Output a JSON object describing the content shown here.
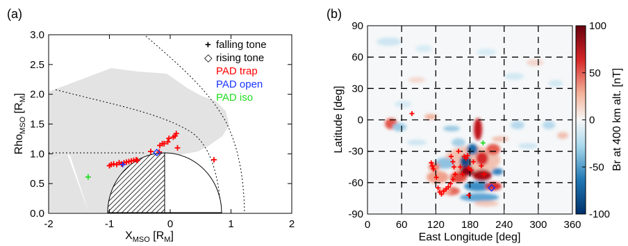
{
  "panels": {
    "a_label": "(a)",
    "b_label": "(b)"
  },
  "chart_data": [
    {
      "type": "scatter",
      "panel": "(a)",
      "xlabel": {
        "main": "X",
        "sub": "MSO",
        "units": " [R",
        "units_sub": "M",
        "close": "]"
      },
      "ylabel": {
        "main": "Rho",
        "sub": "MSO",
        "units": " [R",
        "units_sub": "M",
        "close": "]"
      },
      "xlim": [
        -2,
        2
      ],
      "ylim": [
        0,
        3
      ],
      "xticks": [
        "-2",
        "-1",
        "0",
        "1",
        "2"
      ],
      "xtick_values": [
        -2,
        -1,
        0,
        1,
        2
      ],
      "yticks": [
        "0.0",
        "0.5",
        "1.0",
        "1.5",
        "2.0",
        "2.5",
        "3.0"
      ],
      "ytick_values": [
        0,
        0.5,
        1.0,
        1.5,
        2.0,
        2.5,
        3.0
      ],
      "legend": {
        "placement": "top-right",
        "entries": [
          {
            "symbol": "+",
            "label": "falling tone",
            "color": "#000000"
          },
          {
            "symbol": "◇",
            "label": "rising tone",
            "color": "#000000"
          },
          {
            "label": "PAD trap",
            "color": "#ff0000"
          },
          {
            "label": "PAD open",
            "color": "#1a33ff"
          },
          {
            "label": "PAD iso",
            "color": "#22dd22"
          }
        ]
      },
      "planet": {
        "radius": 1.0,
        "nightside_hatched": true
      },
      "series": [
        {
          "name": "PAD trap",
          "color": "#ff0000",
          "marker": "+",
          "points": [
            [
              -1.0,
              0.8
            ],
            [
              -0.97,
              0.82
            ],
            [
              -0.93,
              0.83
            ],
            [
              -0.88,
              0.82
            ],
            [
              -0.84,
              0.85
            ],
            [
              -0.8,
              0.83
            ],
            [
              -0.76,
              0.85
            ],
            [
              -0.72,
              0.86
            ],
            [
              -0.68,
              0.87
            ],
            [
              -0.64,
              0.88
            ],
            [
              -0.6,
              0.89
            ],
            [
              -0.56,
              0.9
            ],
            [
              -0.54,
              0.89
            ],
            [
              -0.32,
              1.04
            ],
            [
              -0.18,
              1.03
            ],
            [
              -0.17,
              1.14
            ],
            [
              -0.13,
              1.17
            ],
            [
              -0.1,
              1.17
            ],
            [
              -0.04,
              1.2
            ],
            [
              -0.02,
              1.26
            ],
            [
              0.05,
              1.28
            ],
            [
              0.08,
              1.3
            ],
            [
              0.1,
              1.34
            ],
            [
              0.12,
              1.1
            ],
            [
              0.72,
              0.9
            ]
          ]
        },
        {
          "name": "PAD open",
          "color": "#1a33ff",
          "marker": "+",
          "points": [
            [
              -0.78,
              0.82
            ]
          ]
        },
        {
          "name": "PAD open (rising)",
          "color": "#1a33ff",
          "marker": "diamond",
          "points": [
            [
              -0.22,
              1.02
            ]
          ]
        },
        {
          "name": "PAD iso",
          "color": "#22dd22",
          "marker": "+",
          "points": [
            [
              -1.35,
              0.61
            ]
          ]
        }
      ]
    },
    {
      "type": "heatmap",
      "panel": "(b)",
      "xlabel": "East Longitude [deg]",
      "ylabel": "Latitude [deg]",
      "xlim": [
        0,
        360
      ],
      "ylim": [
        -90,
        90
      ],
      "xticks": [
        "0",
        "60",
        "120",
        "180",
        "240",
        "300",
        "360"
      ],
      "xtick_values": [
        0,
        60,
        120,
        180,
        240,
        300,
        360
      ],
      "yticks": [
        "90",
        "60",
        "30",
        "0",
        "-30",
        "-60",
        "-90"
      ],
      "ytick_values": [
        90,
        60,
        30,
        0,
        -30,
        -60,
        -90
      ],
      "grid": true,
      "colorbar": {
        "label": "Br at 400 km alt. [nT]",
        "label_color": "#b0003a",
        "ticks": [
          "100",
          "50",
          "0",
          "-50",
          "-100"
        ],
        "tick_values": [
          100,
          50,
          0,
          -50,
          -100
        ],
        "range": [
          -100,
          100
        ],
        "colors": [
          "#00306b",
          "#1f77b4",
          "#a8d8ec",
          "#f7f7f7",
          "#f4b39a",
          "#d62728",
          "#67000d"
        ]
      },
      "series": [
        {
          "name": "PAD trap",
          "color": "#ff0000",
          "marker": "+",
          "points": [
            [
              78,
              6
            ],
            [
              112,
              -41
            ],
            [
              114,
              -44
            ],
            [
              116,
              -47
            ],
            [
              121,
              -55
            ],
            [
              124,
              -65
            ],
            [
              127,
              -69
            ],
            [
              130,
              -71
            ],
            [
              134,
              -68
            ],
            [
              138,
              -66
            ],
            [
              142,
              -64
            ],
            [
              146,
              -61
            ],
            [
              150,
              -57
            ],
            [
              154,
              -52
            ],
            [
              152,
              -45
            ],
            [
              150,
              -40
            ],
            [
              147,
              -35
            ],
            [
              160,
              -30
            ],
            [
              163,
              -45
            ],
            [
              167,
              -52
            ],
            [
              170,
              -35
            ],
            [
              173,
              -37
            ],
            [
              176,
              -34
            ],
            [
              178,
              -46
            ],
            [
              182,
              -48
            ],
            [
              186,
              -40
            ],
            [
              200,
              -44
            ],
            [
              205,
              -52
            ],
            [
              178,
              -72
            ]
          ]
        },
        {
          "name": "PAD open",
          "color": "#1a33ff",
          "marker": "diamond",
          "points": [
            [
              218,
              -65
            ]
          ]
        },
        {
          "name": "PAD iso",
          "color": "#22dd22",
          "marker": "+",
          "points": [
            [
              203,
              -22
            ]
          ]
        }
      ]
    }
  ]
}
